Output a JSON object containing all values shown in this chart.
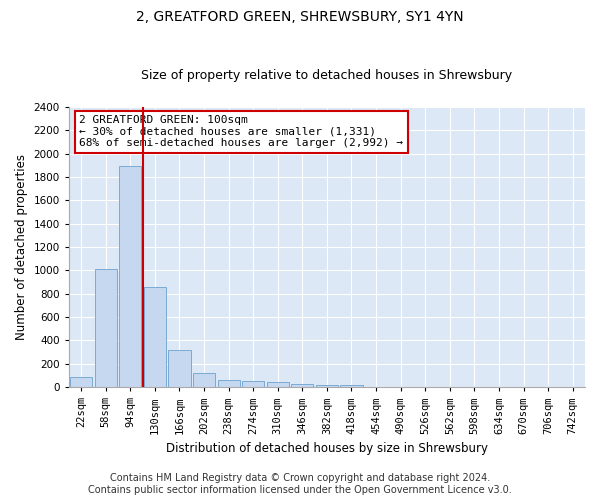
{
  "title1": "2, GREATFORD GREEN, SHREWSBURY, SY1 4YN",
  "title2": "Size of property relative to detached houses in Shrewsbury",
  "xlabel": "Distribution of detached houses by size in Shrewsbury",
  "ylabel": "Number of detached properties",
  "categories": [
    "22sqm",
    "58sqm",
    "94sqm",
    "130sqm",
    "166sqm",
    "202sqm",
    "238sqm",
    "274sqm",
    "310sqm",
    "346sqm",
    "382sqm",
    "418sqm",
    "454sqm",
    "490sqm",
    "526sqm",
    "562sqm",
    "598sqm",
    "634sqm",
    "670sqm",
    "706sqm",
    "742sqm"
  ],
  "values": [
    90,
    1010,
    1890,
    860,
    315,
    120,
    60,
    55,
    45,
    25,
    20,
    20,
    0,
    0,
    0,
    0,
    0,
    0,
    0,
    0,
    0
  ],
  "bar_color": "#c5d8f0",
  "bar_edge_color": "#7aaad4",
  "property_line_x": 2.5,
  "ylim": [
    0,
    2400
  ],
  "yticks": [
    0,
    200,
    400,
    600,
    800,
    1000,
    1200,
    1400,
    1600,
    1800,
    2000,
    2200,
    2400
  ],
  "annotation_text": "2 GREATFORD GREEN: 100sqm\n← 30% of detached houses are smaller (1,331)\n68% of semi-detached houses are larger (2,992) →",
  "annotation_box_color": "#ffffff",
  "annotation_border_color": "#cc0000",
  "footer1": "Contains HM Land Registry data © Crown copyright and database right 2024.",
  "footer2": "Contains public sector information licensed under the Open Government Licence v3.0.",
  "bg_color": "#dce8f5",
  "grid_color": "#ffffff",
  "fig_bg_color": "#ffffff",
  "title_fontsize": 10,
  "subtitle_fontsize": 9,
  "axis_label_fontsize": 8.5,
  "tick_fontsize": 7.5,
  "footer_fontsize": 7,
  "annot_fontsize": 8
}
